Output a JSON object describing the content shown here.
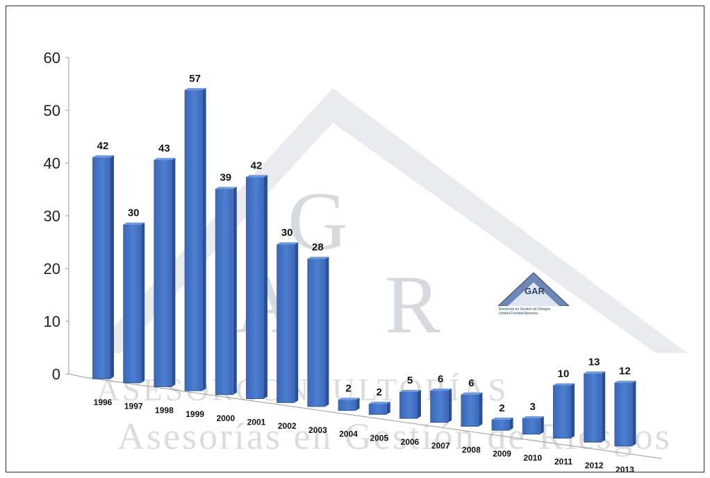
{
  "chart_data": {
    "type": "bar",
    "categories": [
      "1996",
      "1997",
      "1998",
      "1999",
      "2000",
      "2001",
      "2002",
      "2003",
      "2004",
      "2005",
      "2006",
      "2007",
      "2008",
      "2009",
      "2010",
      "2011",
      "2012",
      "2013"
    ],
    "values": [
      42,
      30,
      43,
      57,
      39,
      42,
      30,
      28,
      2,
      2,
      5,
      6,
      6,
      2,
      3,
      10,
      13,
      12
    ],
    "data_labels": [
      "42",
      "30",
      "43",
      "57",
      "39",
      "42",
      "30",
      "28",
      "2",
      "2",
      "5",
      "6",
      "6",
      "2",
      "3",
      "10",
      "13",
      "12"
    ],
    "y_ticks": [
      "0",
      "10",
      "20",
      "30",
      "40",
      "50",
      "60"
    ],
    "ylim": [
      0,
      60
    ],
    "title": "",
    "xlabel": "",
    "ylabel": "",
    "grid": false,
    "bar_color": "#4472c4"
  },
  "watermark": {
    "logo_letters": "GAR",
    "line1": "ASESORCONSULTORÍAS",
    "line2": "Asesorías en Gestión de Riesgos"
  },
  "logo": {
    "letters": "GAR",
    "line1": "Asesorías en Gestión de Riesgos",
    "line2": "Unidad Forestal Asesoria"
  }
}
